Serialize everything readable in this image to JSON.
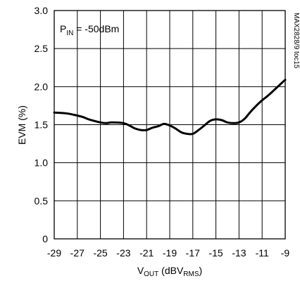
{
  "chart_data": {
    "type": "line",
    "annotation": {
      "main": "P",
      "sub": "IN",
      "rest": " = -50dBm"
    },
    "figure_id": "MAX2828/9 toc15",
    "xlabel": {
      "main": "V",
      "sub1": "OUT",
      "mid": " (dBV",
      "sub2": "RMS",
      "end": ")"
    },
    "ylabel": "EVM (%)",
    "xlim": [
      -29,
      -9
    ],
    "ylim": [
      0,
      3.0
    ],
    "xticks": [
      -29,
      -27,
      -25,
      -23,
      -21,
      -19,
      -17,
      -15,
      -13,
      -11,
      -9
    ],
    "yticks": [
      0,
      0.5,
      1.0,
      1.5,
      2.0,
      2.5,
      3.0
    ],
    "ytick_labels": [
      "0",
      "0.5",
      "1.0",
      "1.5",
      "2.0",
      "2.5",
      "3.0"
    ],
    "grid": true,
    "series": [
      {
        "x": [
          -29,
          -28,
          -27.3,
          -26.5,
          -26,
          -25,
          -24.5,
          -24,
          -23,
          -22.5,
          -22,
          -21.5,
          -21,
          -20.5,
          -20,
          -19.5,
          -19,
          -18.5,
          -18,
          -17.5,
          -17,
          -16.5,
          -16,
          -15.5,
          -15,
          -14.5,
          -14,
          -13.5,
          -13,
          -12.5,
          -12,
          -11.5,
          -11,
          -10.5,
          -10,
          -9.5,
          -9
        ],
        "y": [
          1.66,
          1.65,
          1.63,
          1.6,
          1.57,
          1.53,
          1.52,
          1.53,
          1.52,
          1.49,
          1.45,
          1.43,
          1.43,
          1.46,
          1.48,
          1.51,
          1.49,
          1.45,
          1.4,
          1.38,
          1.38,
          1.43,
          1.49,
          1.55,
          1.57,
          1.56,
          1.53,
          1.52,
          1.53,
          1.58,
          1.67,
          1.75,
          1.82,
          1.88,
          1.95,
          2.02,
          2.09
        ]
      }
    ]
  }
}
